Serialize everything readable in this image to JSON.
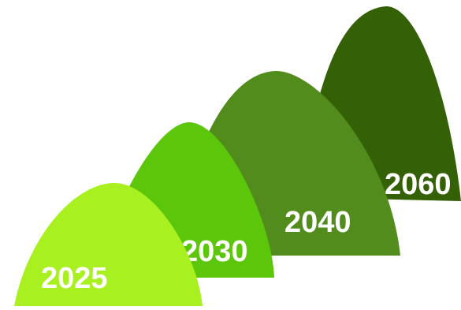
{
  "milestones": [
    {
      "label": "2025",
      "color": "#a8f01f"
    },
    {
      "label": "2030",
      "color": "#5cc70a"
    },
    {
      "label": "2040",
      "color": "#528c1c"
    },
    {
      "label": "2060",
      "color": "#346006"
    }
  ]
}
